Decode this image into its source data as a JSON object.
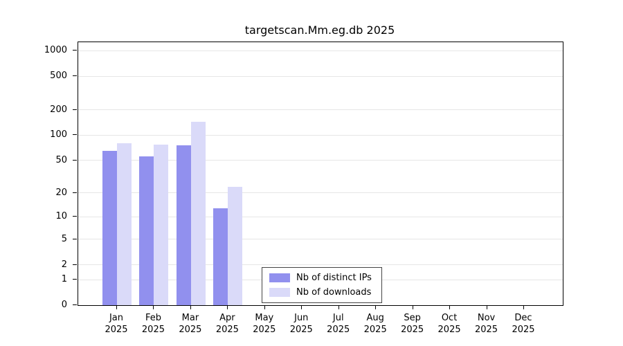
{
  "title": "targetscan.Mm.eg.db 2025",
  "legend": {
    "items": [
      {
        "label": "Nb of distinct IPs",
        "color": "#9190ee"
      },
      {
        "label": "Nb of downloads",
        "color": "#dadaf9"
      }
    ]
  },
  "axes": {
    "y_tick_labels": [
      "1000",
      "500",
      "200",
      "100",
      "50",
      "20",
      "10",
      "5",
      "2",
      "1",
      "0"
    ],
    "x_year_label": "2025"
  },
  "chart_data": {
    "type": "bar",
    "title": "targetscan.Mm.eg.db 2025",
    "categories": [
      "Jan",
      "Feb",
      "Mar",
      "Apr",
      "May",
      "Jun",
      "Jul",
      "Aug",
      "Sep",
      "Oct",
      "Nov",
      "Dec"
    ],
    "year": "2025",
    "series": [
      {
        "name": "Nb of distinct IPs",
        "color": "#9190ee",
        "values": [
          65,
          56,
          75,
          13,
          0,
          0,
          0,
          0,
          0,
          0,
          0,
          0
        ]
      },
      {
        "name": "Nb of downloads",
        "color": "#dadaf9",
        "values": [
          80,
          77,
          145,
          24,
          0,
          0,
          0,
          0,
          0,
          0,
          0,
          0
        ]
      }
    ],
    "y_ticks": [
      0,
      1,
      2,
      5,
      10,
      20,
      50,
      100,
      200,
      500,
      1000
    ],
    "y_scale": "log10(value+1)",
    "ylim": [
      0,
      1000
    ],
    "grid": true,
    "grid_color": "#e6e6e6",
    "legend_position": "bottom-center-inside"
  }
}
